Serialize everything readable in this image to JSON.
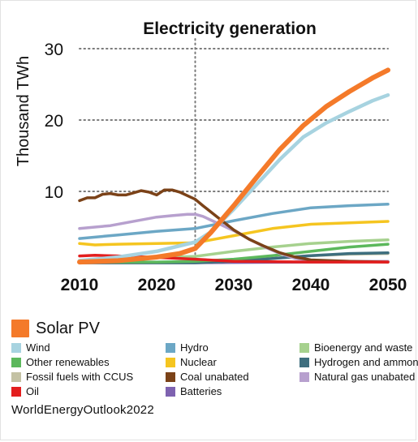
{
  "chart_data": {
    "type": "line",
    "title": "Electricity generation",
    "ylabel": "Thousand TWh",
    "xlabel": "",
    "xlim": [
      2010,
      2050
    ],
    "ylim": [
      0,
      30
    ],
    "x_ticks": [
      2010,
      2020,
      2030,
      2040,
      2050
    ],
    "y_ticks": [
      10,
      20,
      30
    ],
    "grid": "horizontal dotted",
    "reference_line_x": 2025,
    "legend_position": "bottom",
    "series": [
      {
        "name": "Natural gas unabated",
        "color": "#B7A0CE",
        "points": [
          [
            2010,
            4.8
          ],
          [
            2012,
            5.0
          ],
          [
            2014,
            5.2
          ],
          [
            2016,
            5.6
          ],
          [
            2018,
            6.0
          ],
          [
            2020,
            6.4
          ],
          [
            2022,
            6.6
          ],
          [
            2024,
            6.8
          ],
          [
            2025,
            6.8
          ],
          [
            2026,
            6.5
          ],
          [
            2028,
            5.5
          ],
          [
            2030,
            4.5
          ],
          [
            2032,
            3.3
          ],
          [
            2034,
            2.2
          ],
          [
            2036,
            1.3
          ],
          [
            2038,
            0.6
          ],
          [
            2040,
            0.3
          ],
          [
            2045,
            0.2
          ],
          [
            2050,
            0.2
          ]
        ]
      },
      {
        "name": "Coal unabated",
        "color": "#7B4218",
        "points": [
          [
            2010,
            8.7
          ],
          [
            2011,
            9.1
          ],
          [
            2012,
            9.1
          ],
          [
            2013,
            9.6
          ],
          [
            2014,
            9.7
          ],
          [
            2015,
            9.5
          ],
          [
            2016,
            9.5
          ],
          [
            2017,
            9.8
          ],
          [
            2018,
            10.1
          ],
          [
            2019,
            9.9
          ],
          [
            2020,
            9.5
          ],
          [
            2021,
            10.2
          ],
          [
            2022,
            10.2
          ],
          [
            2023,
            9.9
          ],
          [
            2024,
            9.4
          ],
          [
            2025,
            8.9
          ],
          [
            2026,
            8.0
          ],
          [
            2028,
            6.3
          ],
          [
            2030,
            4.6
          ],
          [
            2032,
            3.3
          ],
          [
            2034,
            2.3
          ],
          [
            2036,
            1.4
          ],
          [
            2038,
            0.8
          ],
          [
            2040,
            0.4
          ],
          [
            2045,
            0.2
          ],
          [
            2050,
            0.1
          ]
        ]
      },
      {
        "name": "Hydro",
        "color": "#6CA7C5",
        "points": [
          [
            2010,
            3.4
          ],
          [
            2015,
            3.9
          ],
          [
            2020,
            4.4
          ],
          [
            2025,
            4.8
          ],
          [
            2030,
            5.9
          ],
          [
            2035,
            6.9
          ],
          [
            2040,
            7.7
          ],
          [
            2045,
            8.0
          ],
          [
            2050,
            8.2
          ]
        ]
      },
      {
        "name": "Nuclear",
        "color": "#F5C520",
        "points": [
          [
            2010,
            2.7
          ],
          [
            2012,
            2.5
          ],
          [
            2015,
            2.6
          ],
          [
            2020,
            2.7
          ],
          [
            2025,
            2.8
          ],
          [
            2030,
            3.8
          ],
          [
            2035,
            4.8
          ],
          [
            2040,
            5.4
          ],
          [
            2045,
            5.6
          ],
          [
            2050,
            5.8
          ]
        ]
      },
      {
        "name": "Wind",
        "color": "#A7D3E0",
        "points": [
          [
            2010,
            0.3
          ],
          [
            2015,
            0.8
          ],
          [
            2020,
            1.6
          ],
          [
            2025,
            2.9
          ],
          [
            2027,
            4.3
          ],
          [
            2030,
            7.5
          ],
          [
            2033,
            11.0
          ],
          [
            2036,
            14.5
          ],
          [
            2039,
            17.6
          ],
          [
            2042,
            19.6
          ],
          [
            2045,
            21.2
          ],
          [
            2048,
            22.7
          ],
          [
            2050,
            23.5
          ]
        ]
      },
      {
        "name": "Solar PV",
        "color": "#F47A2A",
        "points": [
          [
            2010,
            0.1
          ],
          [
            2015,
            0.3
          ],
          [
            2020,
            0.8
          ],
          [
            2023,
            1.3
          ],
          [
            2025,
            2.0
          ],
          [
            2027,
            4.2
          ],
          [
            2030,
            8.0
          ],
          [
            2033,
            12.0
          ],
          [
            2036,
            15.9
          ],
          [
            2039,
            19.2
          ],
          [
            2042,
            21.9
          ],
          [
            2045,
            24.0
          ],
          [
            2048,
            25.9
          ],
          [
            2050,
            27.0
          ]
        ]
      },
      {
        "name": "Bioenergy and waste",
        "color": "#A6D18E",
        "points": [
          [
            2010,
            0.3
          ],
          [
            2015,
            0.5
          ],
          [
            2020,
            0.7
          ],
          [
            2025,
            0.9
          ],
          [
            2030,
            1.6
          ],
          [
            2035,
            2.2
          ],
          [
            2040,
            2.7
          ],
          [
            2045,
            3.0
          ],
          [
            2050,
            3.2
          ]
        ]
      },
      {
        "name": "Other renewables",
        "color": "#5CB85C",
        "points": [
          [
            2010,
            0.1
          ],
          [
            2020,
            0.1
          ],
          [
            2025,
            0.2
          ],
          [
            2030,
            0.5
          ],
          [
            2035,
            1.0
          ],
          [
            2040,
            1.6
          ],
          [
            2045,
            2.2
          ],
          [
            2050,
            2.6
          ]
        ]
      },
      {
        "name": "Hydrogen and ammonia",
        "color": "#3E6E7E",
        "points": [
          [
            2010,
            0
          ],
          [
            2025,
            0
          ],
          [
            2030,
            0.2
          ],
          [
            2035,
            0.6
          ],
          [
            2040,
            1.0
          ],
          [
            2045,
            1.3
          ],
          [
            2050,
            1.4
          ]
        ]
      },
      {
        "name": "Fossil fuels with CCUS",
        "color": "#C4C2A4",
        "points": [
          [
            2010,
            0
          ],
          [
            2025,
            0
          ],
          [
            2030,
            0.2
          ],
          [
            2035,
            0.6
          ],
          [
            2040,
            1.0
          ],
          [
            2045,
            1.2
          ],
          [
            2050,
            1.3
          ]
        ]
      },
      {
        "name": "Batteries",
        "color": "#7E62B0",
        "points": [
          [
            2010,
            0
          ],
          [
            2025,
            0
          ],
          [
            2030,
            0.05
          ],
          [
            2040,
            0.1
          ],
          [
            2050,
            0.15
          ]
        ]
      },
      {
        "name": "Oil",
        "color": "#E31E1E",
        "points": [
          [
            2010,
            0.95
          ],
          [
            2012,
            1.05
          ],
          [
            2015,
            0.95
          ],
          [
            2020,
            0.75
          ],
          [
            2025,
            0.5
          ],
          [
            2030,
            0.2
          ],
          [
            2040,
            0.1
          ],
          [
            2050,
            0.1
          ]
        ]
      }
    ]
  },
  "legend": {
    "featured": {
      "label": "Solar PV",
      "color": "#F47A2A"
    },
    "items": [
      {
        "label": "Wind",
        "color": "#A7D3E0"
      },
      {
        "label": "Hydro",
        "color": "#6CA7C5"
      },
      {
        "label": "Bioenergy and waste",
        "color": "#A6D18E"
      },
      {
        "label": "Other renewables",
        "color": "#5CB85C"
      },
      {
        "label": "Nuclear",
        "color": "#F5C520"
      },
      {
        "label": "Hydrogen and ammonia",
        "color": "#3E6E7E"
      },
      {
        "label": "Fossil fuels with CCUS",
        "color": "#C4C2A4"
      },
      {
        "label": "Coal unabated",
        "color": "#7B4218"
      },
      {
        "label": "Natural gas unabated",
        "color": "#B7A0CE"
      },
      {
        "label": "Oil",
        "color": "#E31E1E"
      },
      {
        "label": "Batteries",
        "color": "#7E62B0"
      }
    ]
  },
  "source": "WorldEnergyOutlook2022"
}
